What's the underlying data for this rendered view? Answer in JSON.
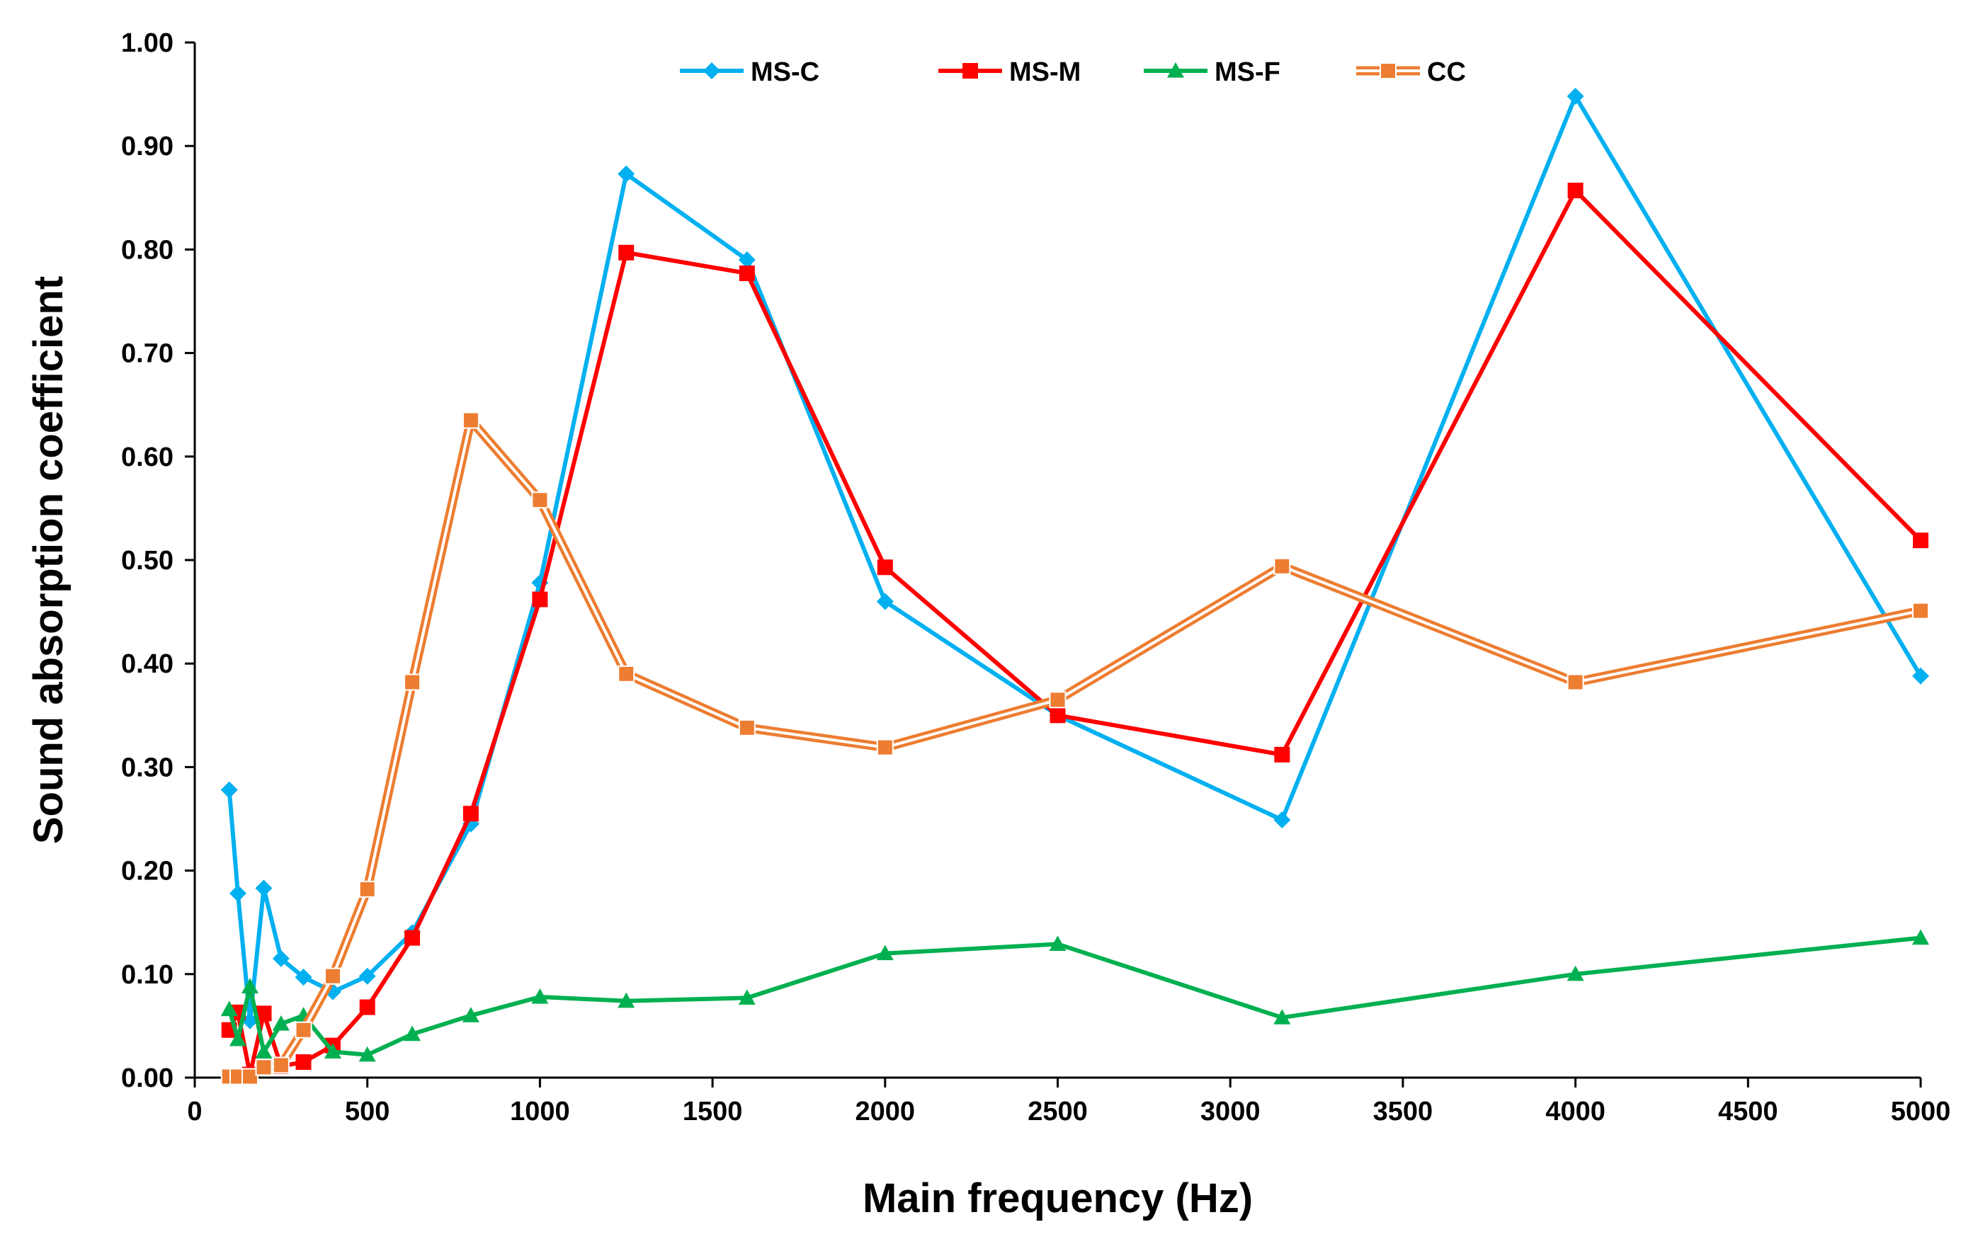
{
  "chart_data": {
    "type": "line",
    "title": "",
    "xlabel": "Main frequency (Hz)",
    "ylabel": "Sound absorption coefficient",
    "xlim": [
      0,
      5000
    ],
    "ylim": [
      0,
      1
    ],
    "xticks": [
      0,
      500,
      1000,
      1500,
      2000,
      2500,
      3000,
      3500,
      4000,
      4500,
      5000
    ],
    "xtick_labels": [
      "0",
      "500",
      "1000",
      "1500",
      "2000",
      "2500",
      "3000",
      "3500",
      "4000",
      "4500",
      "5000"
    ],
    "yticks": [
      0,
      0.1,
      0.2,
      0.3,
      0.4,
      0.5,
      0.6,
      0.7,
      0.8,
      0.9,
      1.0
    ],
    "ytick_labels": [
      "0.00",
      "0.10",
      "0.20",
      "0.30",
      "0.40",
      "0.50",
      "0.60",
      "0.70",
      "0.80",
      "0.90",
      "1.00"
    ],
    "grid": false,
    "legend_position": "top-center",
    "x": [
      100,
      125,
      160,
      200,
      250,
      315,
      400,
      500,
      630,
      800,
      1000,
      1250,
      1600,
      2000,
      2500,
      3150,
      4000,
      5000
    ],
    "series": [
      {
        "name": "MS-C",
        "color": "#00B0F0",
        "marker": "diamond",
        "values": [
          0.278,
          0.178,
          0.055,
          0.183,
          0.115,
          0.097,
          0.083,
          0.098,
          0.14,
          0.245,
          0.478,
          0.873,
          0.79,
          0.46,
          0.35,
          0.249,
          0.948,
          0.388
        ]
      },
      {
        "name": "MS-M",
        "color": "#FF0000",
        "marker": "square",
        "values": [
          0.046,
          0.063,
          0.003,
          0.062,
          0.011,
          0.015,
          0.031,
          0.068,
          0.135,
          0.255,
          0.462,
          0.797,
          0.777,
          0.493,
          0.35,
          0.312,
          0.857,
          0.519
        ]
      },
      {
        "name": "MS-F",
        "color": "#00B050",
        "marker": "triangle",
        "values": [
          0.066,
          0.037,
          0.088,
          0.025,
          0.052,
          0.06,
          0.025,
          0.022,
          0.042,
          0.06,
          0.078,
          0.074,
          0.077,
          0.12,
          0.129,
          0.058,
          0.1,
          0.135
        ]
      },
      {
        "name": "CC",
        "color": "#ED7D31",
        "marker": "square",
        "style": "double",
        "values": [
          0.001,
          0.001,
          0.001,
          0.01,
          0.012,
          0.046,
          0.098,
          0.182,
          0.382,
          0.635,
          0.558,
          0.39,
          0.338,
          0.319,
          0.365,
          0.494,
          0.382,
          0.451
        ]
      }
    ]
  }
}
